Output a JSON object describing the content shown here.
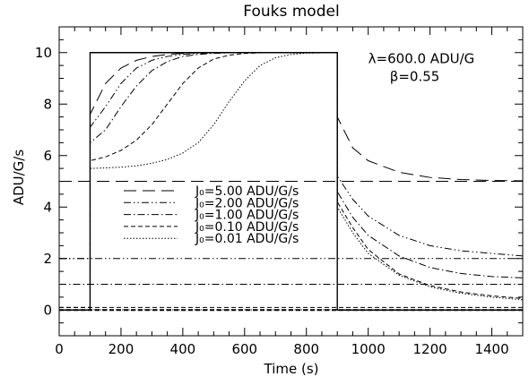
{
  "chart_data": {
    "type": "line",
    "title": "Fouks model",
    "xlabel": "Time (s)",
    "ylabel": "ADU/G/s",
    "xlim": [
      0,
      1500
    ],
    "ylim": [
      -1,
      11
    ],
    "x_ticks": [
      0,
      200,
      400,
      600,
      800,
      1000,
      1200,
      1400
    ],
    "y_ticks": [
      0,
      2,
      4,
      6,
      8,
      10
    ],
    "grid": false,
    "legend_position": "center-left",
    "annotations": [
      {
        "text": "λ=600.0 ADU/G",
        "x": 1000,
        "y": 9.6
      },
      {
        "text": "β=0.55",
        "x": 1070,
        "y": 8.9
      }
    ],
    "input_signal": {
      "x": [
        0,
        100,
        100,
        900,
        900,
        1500
      ],
      "y": [
        0,
        0,
        10,
        10,
        0,
        0
      ]
    },
    "series": [
      {
        "name": "J₀=5.00 ADU/G/s",
        "dash": "dash-long",
        "x": [
          0,
          100,
          100,
          150,
          200,
          250,
          300,
          350,
          400,
          450,
          500,
          600,
          700,
          800,
          900,
          900,
          950,
          1000,
          1100,
          1200,
          1300,
          1400,
          1500
        ],
        "y": [
          5.0,
          5.0,
          7.6,
          8.8,
          9.4,
          9.7,
          9.85,
          9.93,
          9.97,
          9.99,
          10,
          10,
          10,
          10,
          10,
          7.5,
          6.3,
          5.8,
          5.35,
          5.15,
          5.07,
          5.03,
          5.02
        ]
      },
      {
        "name": "J₀=2.00 ADU/G/s",
        "dash": "dash-dot-dot",
        "x": [
          0,
          100,
          100,
          150,
          200,
          250,
          300,
          350,
          400,
          450,
          500,
          550,
          600,
          700,
          800,
          900,
          900,
          950,
          1000,
          1100,
          1200,
          1300,
          1400,
          1500
        ],
        "y": [
          2.0,
          2.0,
          7.1,
          7.9,
          8.8,
          9.4,
          9.7,
          9.85,
          9.93,
          9.97,
          9.99,
          10,
          10,
          10,
          10,
          10,
          5.2,
          4.3,
          3.65,
          2.9,
          2.5,
          2.3,
          2.2,
          2.1
        ]
      },
      {
        "name": "J₀=1.00 ADU/G/s",
        "dash": "dash-dot",
        "x": [
          0,
          100,
          100,
          150,
          200,
          250,
          300,
          350,
          400,
          450,
          500,
          550,
          600,
          700,
          800,
          900,
          900,
          950,
          1000,
          1100,
          1200,
          1300,
          1400,
          1500
        ],
        "y": [
          1.0,
          1.0,
          6.5,
          7.0,
          7.9,
          8.7,
          9.3,
          9.65,
          9.85,
          9.93,
          9.97,
          9.99,
          10,
          10,
          10,
          10,
          4.6,
          3.6,
          2.9,
          2.1,
          1.65,
          1.42,
          1.3,
          1.25
        ]
      },
      {
        "name": "J₀=0.10 ADU/G/s",
        "dash": "dash",
        "x": [
          0,
          100,
          100,
          150,
          200,
          250,
          300,
          350,
          400,
          450,
          500,
          550,
          600,
          650,
          700,
          800,
          900,
          900,
          950,
          1000,
          1100,
          1200,
          1300,
          1400,
          1500
        ],
        "y": [
          0.1,
          0.1,
          5.8,
          5.95,
          6.2,
          6.6,
          7.2,
          8.0,
          8.8,
          9.4,
          9.75,
          9.9,
          9.97,
          9.99,
          10,
          10,
          10,
          4.2,
          3.2,
          2.35,
          1.4,
          0.95,
          0.7,
          0.55,
          0.45
        ]
      },
      {
        "name": "J₀=0.01 ADU/G/s",
        "dash": "dot",
        "x": [
          0,
          100,
          100,
          150,
          200,
          250,
          300,
          350,
          400,
          450,
          500,
          550,
          600,
          650,
          700,
          750,
          800,
          900,
          900,
          950,
          1000,
          1100,
          1200,
          1300,
          1400,
          1500
        ],
        "y": [
          0.01,
          0.01,
          5.5,
          5.52,
          5.55,
          5.6,
          5.7,
          5.85,
          6.1,
          6.5,
          7.2,
          8.1,
          8.9,
          9.5,
          9.8,
          9.93,
          9.98,
          10,
          4.0,
          3.0,
          2.2,
          1.35,
          0.9,
          0.65,
          0.5,
          0.4
        ]
      }
    ],
    "equilibrium_levels": [
      {
        "y": 5.0,
        "dash": "dash-long"
      },
      {
        "y": 2.0,
        "dash": "dash-dot-dot"
      },
      {
        "y": 1.0,
        "dash": "dash-dot"
      },
      {
        "y": 0.1,
        "dash": "dash"
      },
      {
        "y": 0.01,
        "dash": "dot"
      }
    ],
    "zero_line": {
      "y": 0.0,
      "dash": "dash-bold"
    },
    "colors": {
      "line": "#000000",
      "background": "#ffffff"
    }
  }
}
